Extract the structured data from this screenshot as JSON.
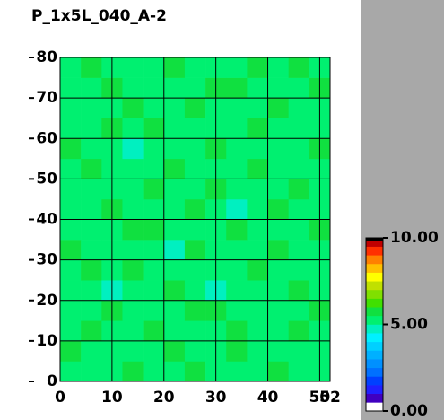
{
  "chart_data": {
    "type": "heatmap",
    "title": "P_1x5L_040_A-2",
    "xlim": [
      0,
      52
    ],
    "ylim": [
      0,
      80
    ],
    "xticks": [
      0,
      10,
      20,
      30,
      40,
      50,
      52
    ],
    "yticks": [
      0,
      10,
      20,
      30,
      40,
      50,
      60,
      70,
      80
    ],
    "grid": true,
    "zlim": [
      0,
      10
    ],
    "zticks": [
      {
        "value": 0,
        "label": "0.00"
      },
      {
        "value": 5,
        "label": "5.00"
      },
      {
        "value": 10,
        "label": "10.00"
      }
    ],
    "colorscale": [
      "#ffffff",
      "#4000c0",
      "#2020ff",
      "#0040ff",
      "#0070ff",
      "#0090ff",
      "#00b0ff",
      "#00d0ff",
      "#00f0ff",
      "#00f0c0",
      "#00f070",
      "#10e040",
      "#40e000",
      "#80e000",
      "#c0e000",
      "#ffff00",
      "#ffc000",
      "#ff8000",
      "#ff3000",
      "#c00000"
    ],
    "z": [
      [
        5.2,
        5.4,
        5.1,
        5.6,
        5.3,
        5.2,
        5.5,
        5.4,
        5.1,
        5.3,
        5.6,
        5.2,
        5.4
      ],
      [
        5.5,
        5.1,
        5.3,
        5.4,
        5.2,
        5.6,
        5.1,
        5.3,
        5.5,
        5.2,
        5.4,
        5.1,
        5.3
      ],
      [
        5.3,
        5.6,
        5.2,
        5.1,
        5.5,
        5.3,
        5.4,
        5.2,
        5.6,
        5.4,
        5.1,
        5.5,
        5.2
      ],
      [
        5.1,
        5.3,
        5.5,
        5.2,
        5.4,
        5.1,
        5.6,
        5.5,
        5.2,
        5.3,
        5.4,
        5.2,
        5.6
      ],
      [
        5.4,
        5.2,
        4.9,
        5.3,
        5.1,
        5.5,
        5.2,
        4.9,
        5.4,
        5.1,
        5.3,
        5.6,
        5.2
      ],
      [
        5.2,
        5.5,
        5.3,
        5.6,
        5.2,
        5.4,
        5.3,
        5.1,
        5.3,
        5.5,
        5.2,
        5.4,
        5.1
      ],
      [
        5.6,
        5.1,
        5.4,
        5.2,
        5.3,
        4.9,
        5.5,
        5.4,
        5.2,
        5.1,
        5.6,
        5.3,
        5.4
      ],
      [
        5.3,
        5.4,
        5.2,
        5.5,
        5.6,
        5.2,
        5.1,
        5.3,
        5.5,
        5.4,
        5.2,
        5.1,
        5.5
      ],
      [
        5.1,
        5.3,
        5.6,
        5.1,
        5.2,
        5.4,
        5.6,
        5.2,
        4.9,
        5.3,
        5.5,
        5.4,
        5.2
      ],
      [
        5.4,
        5.2,
        5.3,
        5.4,
        5.5,
        5.1,
        5.3,
        5.6,
        5.3,
        5.2,
        5.1,
        5.5,
        5.3
      ],
      [
        5.2,
        5.6,
        5.1,
        5.3,
        5.2,
        5.5,
        5.4,
        5.1,
        5.4,
        5.6,
        5.3,
        5.2,
        5.4
      ],
      [
        5.5,
        5.3,
        5.4,
        4.9,
        5.4,
        5.2,
        5.1,
        5.5,
        5.2,
        5.3,
        5.4,
        5.1,
        5.6
      ],
      [
        5.3,
        5.1,
        5.5,
        5.2,
        5.6,
        5.3,
        5.2,
        5.4,
        5.1,
        5.5,
        5.2,
        5.3,
        5.1
      ],
      [
        5.1,
        5.4,
        5.2,
        5.5,
        5.1,
        5.4,
        5.6,
        5.2,
        5.3,
        5.1,
        5.6,
        5.4,
        5.2
      ],
      [
        5.4,
        5.2,
        5.6,
        5.3,
        5.4,
        5.1,
        5.3,
        5.5,
        5.6,
        5.2,
        5.3,
        5.2,
        5.5
      ],
      [
        5.2,
        5.5,
        5.3,
        5.1,
        5.3,
        5.6,
        5.2,
        5.1,
        5.4,
        5.5,
        5.1,
        5.6,
        5.3
      ]
    ]
  }
}
